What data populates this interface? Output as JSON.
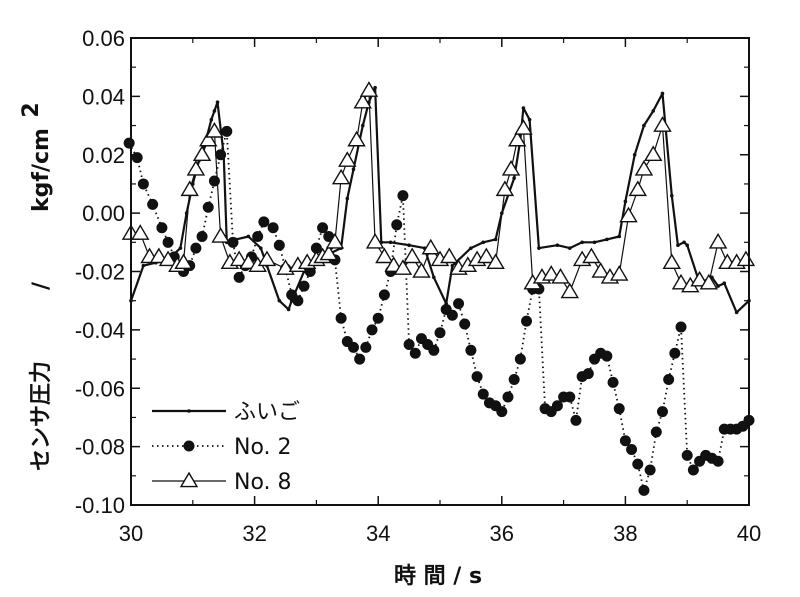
{
  "chart_data": {
    "type": "line",
    "title": "",
    "xlabel": "時 間 / s",
    "ylabel": "センサ圧力 / kgf/cm²",
    "ylabel_main": "センサ圧力",
    "ylabel_sep": "/",
    "ylabel_unit": "kgf/cm",
    "ylabel_sup": "2",
    "xlim": [
      30,
      40
    ],
    "ylim": [
      -0.1,
      0.06
    ],
    "xticks": [
      30,
      32,
      34,
      36,
      38,
      40
    ],
    "yticks": [
      -0.1,
      -0.08,
      -0.06,
      -0.04,
      -0.02,
      0.0,
      0.02,
      0.04,
      0.06
    ],
    "xtick_labels": [
      "30",
      "32",
      "34",
      "36",
      "38",
      "40"
    ],
    "ytick_labels": [
      "-0.10",
      "-0.08",
      "-0.06",
      "-0.04",
      "-0.02",
      "0.00",
      "0.02",
      "0.04",
      "0.06"
    ],
    "grid": false,
    "legend_position": "bottom-left",
    "series": [
      {
        "name": "ふいご",
        "line": "solid",
        "marker": "dot-small",
        "x": [
          30.0,
          30.2,
          30.4,
          30.6,
          30.8,
          30.9,
          31.0,
          31.1,
          31.2,
          31.3,
          31.35,
          31.4,
          31.5,
          31.55,
          31.7,
          31.9,
          32.1,
          32.2,
          32.4,
          32.55,
          32.6,
          32.8,
          33.0,
          33.2,
          33.4,
          33.5,
          33.6,
          33.75,
          33.85,
          33.95,
          34.05,
          34.2,
          34.5,
          34.75,
          34.9,
          35.1,
          35.2,
          35.5,
          35.7,
          35.9,
          36.0,
          36.2,
          36.3,
          36.35,
          36.45,
          36.6,
          36.9,
          37.1,
          37.3,
          37.5,
          37.7,
          37.9,
          38.0,
          38.15,
          38.3,
          38.45,
          38.6,
          38.75,
          38.85,
          38.95,
          39.0,
          39.2,
          39.4,
          39.5,
          39.6,
          39.8,
          40.0
        ],
        "y": [
          -0.03,
          -0.018,
          -0.017,
          -0.016,
          -0.012,
          0.0,
          0.01,
          0.018,
          0.024,
          0.032,
          0.035,
          0.038,
          0.02,
          -0.01,
          -0.009,
          -0.008,
          -0.012,
          -0.018,
          -0.03,
          -0.033,
          -0.03,
          -0.02,
          -0.016,
          -0.014,
          -0.012,
          0.005,
          0.015,
          0.03,
          0.038,
          0.043,
          -0.01,
          -0.01,
          -0.011,
          -0.012,
          -0.022,
          -0.031,
          -0.018,
          -0.012,
          -0.01,
          -0.009,
          0.0,
          0.012,
          0.025,
          0.036,
          0.032,
          -0.012,
          -0.011,
          -0.012,
          -0.01,
          -0.01,
          -0.009,
          -0.008,
          0.004,
          0.02,
          0.03,
          0.035,
          0.041,
          0.006,
          -0.011,
          -0.01,
          -0.011,
          -0.024,
          -0.022,
          -0.025,
          -0.024,
          -0.034,
          -0.03
        ]
      },
      {
        "name": "No. 2",
        "line": "dotted",
        "marker": "filled-circle",
        "x": [
          29.97,
          30.1,
          30.2,
          30.35,
          30.5,
          30.6,
          30.7,
          30.85,
          30.95,
          31.05,
          31.15,
          31.25,
          31.35,
          31.45,
          31.55,
          31.65,
          31.75,
          31.85,
          31.95,
          32.05,
          32.15,
          32.3,
          32.4,
          32.5,
          32.6,
          32.7,
          32.8,
          32.9,
          33.0,
          33.1,
          33.2,
          33.3,
          33.4,
          33.5,
          33.6,
          33.7,
          33.8,
          33.9,
          34.0,
          34.1,
          34.2,
          34.3,
          34.4,
          34.5,
          34.6,
          34.7,
          34.8,
          34.9,
          35.0,
          35.1,
          35.2,
          35.3,
          35.4,
          35.5,
          35.6,
          35.7,
          35.8,
          35.9,
          36.0,
          36.1,
          36.2,
          36.3,
          36.4,
          36.5,
          36.6,
          36.7,
          36.8,
          36.9,
          37.0,
          37.1,
          37.2,
          37.3,
          37.4,
          37.5,
          37.6,
          37.7,
          37.8,
          37.9,
          38.0,
          38.1,
          38.2,
          38.3,
          38.4,
          38.5,
          38.6,
          38.7,
          38.8,
          38.9,
          39.0,
          39.1,
          39.2,
          39.3,
          39.4,
          39.5,
          39.6,
          39.7,
          39.8,
          39.9,
          40.0
        ],
        "y": [
          0.024,
          0.019,
          0.01,
          0.003,
          -0.005,
          -0.01,
          -0.015,
          -0.02,
          -0.018,
          -0.012,
          -0.008,
          0.002,
          0.011,
          0.02,
          0.028,
          -0.01,
          -0.022,
          -0.018,
          -0.015,
          -0.008,
          -0.003,
          -0.005,
          -0.011,
          -0.019,
          -0.028,
          -0.03,
          -0.025,
          -0.02,
          -0.012,
          -0.005,
          -0.008,
          -0.016,
          -0.036,
          -0.044,
          -0.046,
          -0.05,
          -0.046,
          -0.04,
          -0.036,
          -0.028,
          -0.02,
          -0.004,
          0.006,
          -0.045,
          -0.048,
          -0.043,
          -0.045,
          -0.047,
          -0.041,
          -0.033,
          -0.035,
          -0.031,
          -0.038,
          -0.047,
          -0.056,
          -0.062,
          -0.065,
          -0.066,
          -0.068,
          -0.063,
          -0.057,
          -0.05,
          -0.037,
          -0.026,
          -0.026,
          -0.067,
          -0.068,
          -0.066,
          -0.063,
          -0.063,
          -0.071,
          -0.056,
          -0.055,
          -0.05,
          -0.048,
          -0.049,
          -0.058,
          -0.067,
          -0.078,
          -0.081,
          -0.086,
          -0.095,
          -0.088,
          -0.075,
          -0.068,
          -0.057,
          -0.048,
          -0.039,
          -0.083,
          -0.088,
          -0.085,
          -0.083,
          -0.084,
          -0.085,
          -0.074,
          -0.074,
          -0.074,
          -0.073,
          -0.071
        ]
      },
      {
        "name": "No. 8",
        "line": "solid-thin",
        "marker": "open-triangle",
        "x": [
          30.0,
          30.15,
          30.3,
          30.45,
          30.6,
          30.75,
          30.85,
          30.95,
          31.05,
          31.15,
          31.25,
          31.35,
          31.45,
          31.6,
          31.75,
          31.9,
          32.05,
          32.2,
          32.5,
          32.7,
          32.85,
          33.0,
          33.1,
          33.2,
          33.3,
          33.4,
          33.5,
          33.65,
          33.75,
          33.85,
          33.95,
          34.1,
          34.25,
          34.4,
          34.55,
          34.7,
          34.85,
          35.0,
          35.15,
          35.3,
          35.45,
          35.6,
          35.75,
          35.9,
          36.05,
          36.15,
          36.25,
          36.35,
          36.5,
          36.65,
          36.8,
          36.95,
          37.1,
          37.3,
          37.45,
          37.6,
          37.75,
          37.9,
          38.05,
          38.2,
          38.3,
          38.45,
          38.6,
          38.75,
          38.9,
          39.05,
          39.2,
          39.35,
          39.5,
          39.65,
          39.8,
          39.95
        ],
        "y": [
          -0.007,
          -0.007,
          -0.015,
          -0.015,
          -0.016,
          -0.018,
          -0.017,
          0.008,
          0.015,
          0.02,
          0.025,
          0.028,
          -0.008,
          -0.017,
          -0.016,
          -0.017,
          -0.018,
          -0.016,
          -0.019,
          -0.018,
          -0.017,
          -0.016,
          -0.015,
          -0.014,
          -0.01,
          0.012,
          0.018,
          0.025,
          0.038,
          0.042,
          -0.01,
          -0.015,
          -0.018,
          -0.019,
          -0.015,
          -0.02,
          -0.012,
          -0.016,
          -0.015,
          -0.019,
          -0.018,
          -0.016,
          -0.015,
          -0.017,
          0.008,
          0.015,
          0.025,
          0.029,
          -0.024,
          -0.022,
          -0.021,
          -0.022,
          -0.027,
          -0.016,
          -0.015,
          -0.02,
          -0.022,
          -0.021,
          -0.001,
          0.008,
          0.015,
          0.02,
          0.03,
          -0.017,
          -0.024,
          -0.025,
          -0.023,
          -0.024,
          -0.01,
          -0.017,
          -0.017,
          -0.016
        ]
      }
    ]
  }
}
